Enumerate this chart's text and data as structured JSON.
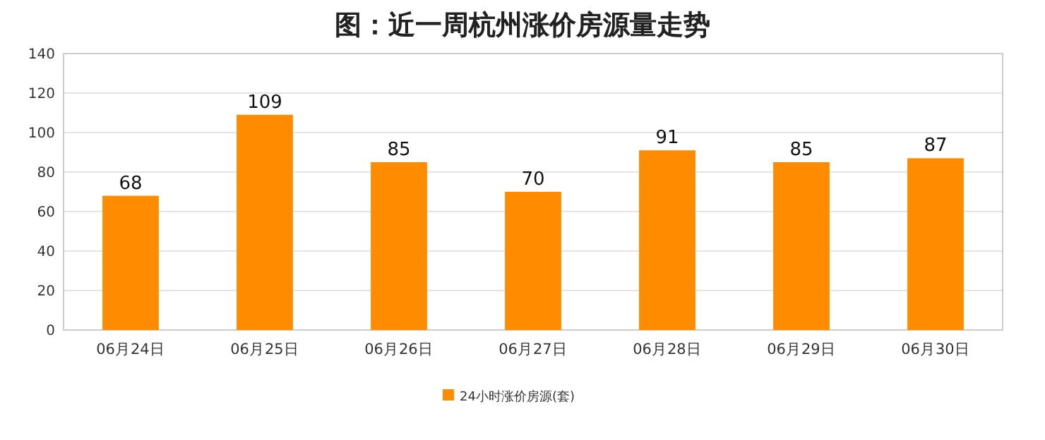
{
  "chart_data": {
    "type": "bar",
    "title": "图：近一周杭州涨价房源量走势",
    "categories": [
      "06月24日",
      "06月25日",
      "06月26日",
      "06月27日",
      "06月28日",
      "06月29日",
      "06月30日"
    ],
    "series": [
      {
        "name": "24小时涨价房源(套)",
        "color": "#ff8c00",
        "values": [
          68,
          109,
          85,
          70,
          91,
          85,
          87
        ]
      }
    ],
    "ylim": [
      0,
      140
    ],
    "yticks": [
      0,
      20,
      40,
      60,
      80,
      100,
      120,
      140
    ],
    "grid": "y",
    "legend": "bottom",
    "data_labels": true
  }
}
